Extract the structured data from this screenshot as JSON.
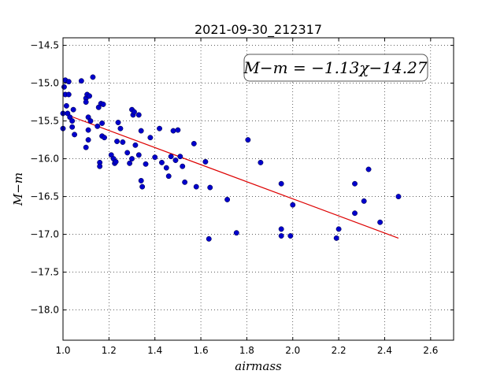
{
  "chart_data": {
    "type": "scatter",
    "title": "2021-09-30_212317",
    "xlabel": "airmass",
    "ylabel": "M−m",
    "xlim": [
      1.0,
      2.7
    ],
    "ylim": [
      -18.4,
      -14.4
    ],
    "y_inverted": true,
    "grid": true,
    "x_ticks": [
      "1.0",
      "1.2",
      "1.4",
      "1.6",
      "1.8",
      "2.0",
      "2.2",
      "2.4",
      "2.6"
    ],
    "y_ticks": [
      "−14.5",
      "−15.0",
      "−15.5",
      "−16.0",
      "−16.5",
      "−17.0",
      "−17.5",
      "−18.0"
    ],
    "annotation": "M−m = −1.13χ−14.27",
    "colors": {
      "points": "#0000cc",
      "fit": "#dd0000"
    },
    "fit": {
      "slope": -1.13,
      "intercept": -14.27,
      "x_range": [
        1.0,
        2.46
      ]
    },
    "points": [
      [
        1.0,
        -15.4
      ],
      [
        1.0,
        -15.6
      ],
      [
        1.005,
        -15.05
      ],
      [
        1.01,
        -14.96
      ],
      [
        1.01,
        -15.15
      ],
      [
        1.015,
        -15.3
      ],
      [
        1.02,
        -15.4
      ],
      [
        1.025,
        -14.98
      ],
      [
        1.025,
        -15.15
      ],
      [
        1.03,
        -15.45
      ],
      [
        1.04,
        -15.5
      ],
      [
        1.04,
        -15.58
      ],
      [
        1.045,
        -15.35
      ],
      [
        1.05,
        -15.68
      ],
      [
        1.08,
        -14.97
      ],
      [
        1.1,
        -15.2
      ],
      [
        1.1,
        -15.25
      ],
      [
        1.1,
        -15.85
      ],
      [
        1.105,
        -15.15
      ],
      [
        1.11,
        -15.45
      ],
      [
        1.11,
        -15.62
      ],
      [
        1.11,
        -15.75
      ],
      [
        1.115,
        -15.17
      ],
      [
        1.12,
        -15.5
      ],
      [
        1.13,
        -14.92
      ],
      [
        1.15,
        -15.57
      ],
      [
        1.155,
        -15.32
      ],
      [
        1.16,
        -16.05
      ],
      [
        1.16,
        -16.1
      ],
      [
        1.165,
        -15.27
      ],
      [
        1.17,
        -15.53
      ],
      [
        1.17,
        -15.7
      ],
      [
        1.175,
        -15.28
      ],
      [
        1.18,
        -15.72
      ],
      [
        1.21,
        -15.95
      ],
      [
        1.22,
        -16.0
      ],
      [
        1.225,
        -16.06
      ],
      [
        1.23,
        -16.04
      ],
      [
        1.235,
        -15.77
      ],
      [
        1.24,
        -15.52
      ],
      [
        1.25,
        -15.6
      ],
      [
        1.26,
        -15.78
      ],
      [
        1.28,
        -15.92
      ],
      [
        1.29,
        -16.06
      ],
      [
        1.3,
        -15.35
      ],
      [
        1.3,
        -16.0
      ],
      [
        1.305,
        -15.42
      ],
      [
        1.31,
        -15.38
      ],
      [
        1.315,
        -15.82
      ],
      [
        1.33,
        -15.42
      ],
      [
        1.33,
        -15.95
      ],
      [
        1.34,
        -15.63
      ],
      [
        1.34,
        -16.29
      ],
      [
        1.345,
        -16.37
      ],
      [
        1.36,
        -16.07
      ],
      [
        1.38,
        -15.72
      ],
      [
        1.4,
        -15.98
      ],
      [
        1.42,
        -15.6
      ],
      [
        1.43,
        -16.05
      ],
      [
        1.45,
        -16.12
      ],
      [
        1.46,
        -16.23
      ],
      [
        1.47,
        -15.97
      ],
      [
        1.48,
        -15.63
      ],
      [
        1.49,
        -16.02
      ],
      [
        1.5,
        -15.62
      ],
      [
        1.51,
        -15.97
      ],
      [
        1.52,
        -16.1
      ],
      [
        1.53,
        -16.31
      ],
      [
        1.57,
        -15.8
      ],
      [
        1.58,
        -16.37
      ],
      [
        1.62,
        -16.04
      ],
      [
        1.635,
        -17.06
      ],
      [
        1.64,
        -16.38
      ],
      [
        1.715,
        -16.54
      ],
      [
        1.755,
        -16.98
      ],
      [
        1.805,
        -15.75
      ],
      [
        1.86,
        -16.05
      ],
      [
        1.95,
        -16.33
      ],
      [
        1.95,
        -16.93
      ],
      [
        1.95,
        -17.02
      ],
      [
        1.99,
        -17.02
      ],
      [
        2.0,
        -16.61
      ],
      [
        2.19,
        -17.05
      ],
      [
        2.2,
        -16.93
      ],
      [
        2.27,
        -16.33
      ],
      [
        2.27,
        -16.72
      ],
      [
        2.31,
        -16.56
      ],
      [
        2.33,
        -16.14
      ],
      [
        2.38,
        -16.84
      ],
      [
        2.46,
        -16.5
      ]
    ]
  }
}
